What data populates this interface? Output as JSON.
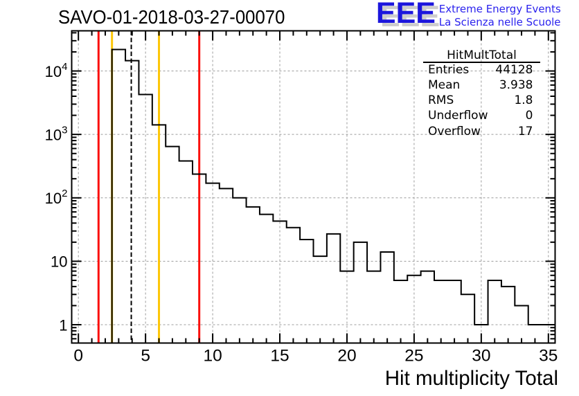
{
  "title": "SAVO-01-2018-03-27-00070",
  "logo": {
    "acronym": "EEE",
    "line1": "Extreme Energy Events",
    "line2": "La Scienza nelle Scuole",
    "blue": "#1c16dd",
    "gray": "#c9c9c9"
  },
  "stats": {
    "title": "HitMultTotal",
    "rows": [
      {
        "label": "Entries",
        "value": "44128"
      },
      {
        "label": "Mean",
        "value": "3.938"
      },
      {
        "label": "RMS",
        "value": "1.8"
      },
      {
        "label": "Underflow",
        "value": "0"
      },
      {
        "label": "Overflow",
        "value": "17"
      }
    ]
  },
  "chart_data": {
    "type": "bar",
    "title": "SAVO-01-2018-03-27-00070",
    "xlabel": "Hit multiplicity Total",
    "ylabel": "",
    "x_range": [
      -0.5,
      35.5
    ],
    "y_range": [
      0.514,
      43000
    ],
    "y_scale": "log",
    "grid": true,
    "bin_centers": [
      0,
      1,
      2,
      3,
      4,
      5,
      6,
      7,
      8,
      9,
      10,
      11,
      12,
      13,
      14,
      15,
      16,
      17,
      18,
      19,
      20,
      21,
      22,
      23,
      24,
      25,
      26,
      27,
      28,
      29,
      30,
      31,
      32,
      33,
      34,
      35
    ],
    "values": [
      0,
      0,
      0,
      21847,
      14564,
      4256,
      1413,
      644,
      382,
      237,
      170,
      140,
      100,
      72,
      55,
      43,
      34,
      22,
      12,
      27,
      7,
      20,
      7,
      14,
      5,
      6,
      7,
      5,
      5,
      3,
      1,
      5,
      4,
      2,
      1,
      1
    ],
    "x_major_ticks": [
      0,
      5,
      10,
      15,
      20,
      25,
      30,
      35
    ],
    "x_tick_labels": [
      "0",
      "5",
      "10",
      "15",
      "20",
      "25",
      "30",
      "35"
    ],
    "x_minor_step": 1,
    "y_major_ticks": [
      1,
      10,
      100,
      1000,
      10000
    ],
    "y_tick_labels": [
      {
        "value": 1,
        "base": "1",
        "exp": ""
      },
      {
        "value": 10,
        "base": "10",
        "exp": ""
      },
      {
        "value": 100,
        "base": "10",
        "exp": "2"
      },
      {
        "value": 1000,
        "base": "10",
        "exp": "3"
      },
      {
        "value": 10000,
        "base": "10",
        "exp": "4"
      }
    ],
    "marker_lines": [
      {
        "x": 1.5,
        "color": "#fb0f0c",
        "dash": "none",
        "width": 3,
        "name": "red-marker-line-low"
      },
      {
        "x": 2.5,
        "color": "#fdc608",
        "dash": "none",
        "width": 3,
        "name": "yellow-marker-line-low"
      },
      {
        "x": 3.938,
        "color": "#000000",
        "dash": "6.5,3.5",
        "width": 2,
        "name": "mean-marker-line"
      },
      {
        "x": 6,
        "color": "#fdc608",
        "dash": "none",
        "width": 3,
        "name": "yellow-marker-line-high"
      },
      {
        "x": 9,
        "color": "#fb0f0c",
        "dash": "none",
        "width": 3,
        "name": "red-marker-line-high"
      }
    ],
    "histogram_color": "#000000",
    "grid_color": "#9c9c9c",
    "frame_color": "#000000"
  }
}
